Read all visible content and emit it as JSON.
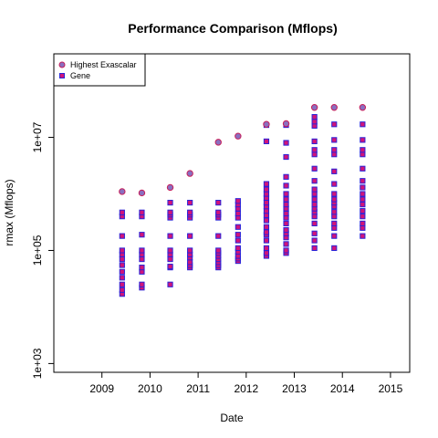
{
  "chart_data": {
    "type": "scatter",
    "title": "Performance Comparison (Mflops)",
    "xlabel": "Date",
    "ylabel": "rmax (Mflops)",
    "x_ticks": [
      "2009",
      "2010",
      "2011",
      "2012",
      "2013",
      "2014",
      "2015"
    ],
    "xlim": [
      2008.0,
      2015.4
    ],
    "y_scale": "log",
    "y_ticks": [
      "1e+03",
      "1e+05",
      "1e+07"
    ],
    "ylim": [
      700,
      300000000
    ],
    "grid": false,
    "legend_position": "top-left",
    "legend": [
      "Highest Exascalar",
      "Gene"
    ],
    "series": [
      {
        "name": "Highest Exascalar",
        "marker": "circle",
        "fill": "#8a6fc0",
        "edge": "#c81e5a",
        "points": [
          [
            2009.42,
            1100000
          ],
          [
            2009.83,
            1040000
          ],
          [
            2010.42,
            1300000
          ],
          [
            2010.83,
            2300000
          ],
          [
            2011.42,
            8200000
          ],
          [
            2011.83,
            10500000
          ],
          [
            2012.42,
            17000000
          ],
          [
            2012.83,
            17500000
          ],
          [
            2013.42,
            33800000
          ],
          [
            2013.83,
            33800000
          ],
          [
            2014.42,
            33800000
          ]
        ]
      },
      {
        "name": "Gene",
        "marker": "square",
        "fill": "#d0147a",
        "edge": "#2a24d8",
        "groups": [
          {
            "x": 2009.42,
            "y": [
              17000,
              20000,
              25000,
              33000,
              42000,
              55000,
              70000,
              85000,
              100000,
              180000,
              400000,
              470000
            ]
          },
          {
            "x": 2009.83,
            "y": [
              22000,
              25000,
              42000,
              50000,
              70000,
              85000,
              100000,
              190000,
              400000,
              470000
            ]
          },
          {
            "x": 2010.42,
            "y": [
              25000,
              50000,
              52000,
              70000,
              85000,
              100000,
              180000,
              380000,
              430000,
              470000,
              700000
            ]
          },
          {
            "x": 2010.83,
            "y": [
              50000,
              55000,
              62000,
              75000,
              85000,
              100000,
              180000,
              380000,
              430000,
              470000,
              700000
            ]
          },
          {
            "x": 2011.42,
            "y": [
              50000,
              55000,
              62000,
              70000,
              80000,
              90000,
              100000,
              180000,
              380000,
              430000,
              470000,
              700000
            ]
          },
          {
            "x": 2011.83,
            "y": [
              65000,
              72000,
              80000,
              95000,
              110000,
              150000,
              190000,
              260000,
              380000,
              450000,
              550000,
              650000,
              750000
            ]
          },
          {
            "x": 2012.42,
            "y": [
              80000,
              90000,
              110000,
              150000,
              190000,
              210000,
              260000,
              340000,
              420000,
              500000,
              600000,
              700000,
              850000,
              1000000,
              1200000,
              1500000,
              8500000,
              16500000
            ]
          },
          {
            "x": 2012.83,
            "y": [
              90000,
              100000,
              130000,
              170000,
              200000,
              230000,
              300000,
              380000,
              450000,
              550000,
              650000,
              800000,
              1000000,
              1400000,
              2000000,
              4500000,
              8000000,
              16500000
            ]
          },
          {
            "x": 2013.42,
            "y": [
              110000,
              150000,
              200000,
              300000,
              400000,
              480000,
              550000,
              650000,
              800000,
              1000000,
              1200000,
              1700000,
              2800000,
              5000000,
              6000000,
              8500000,
              16000000,
              19000000,
              23000000
            ]
          },
          {
            "x": 2013.83,
            "y": [
              110000,
              180000,
              250000,
              300000,
              400000,
              480000,
              600000,
              700000,
              800000,
              1000000,
              1500000,
              2500000,
              5000000,
              6000000,
              9000000,
              17000000
            ]
          },
          {
            "x": 2014.42,
            "y": [
              180000,
              250000,
              300000,
              400000,
              500000,
              650000,
              800000,
              1000000,
              1300000,
              1700000,
              2800000,
              5000000,
              6000000,
              9000000,
              17000000
            ]
          }
        ]
      }
    ]
  }
}
